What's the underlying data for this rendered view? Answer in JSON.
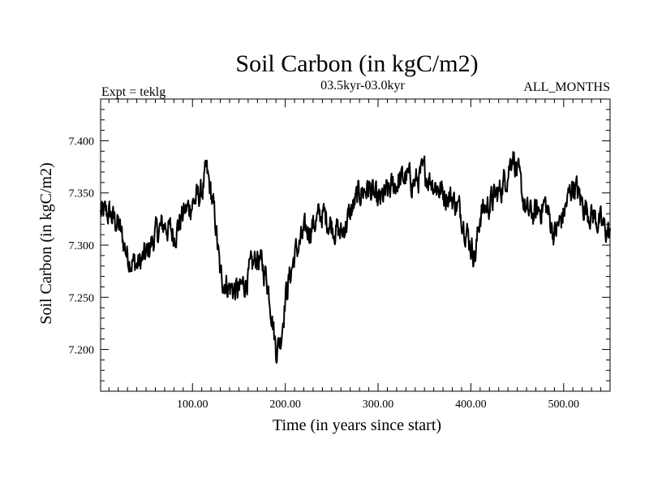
{
  "chart_data": {
    "type": "line",
    "title": "Soil Carbon (in kgC/m2)",
    "subtitle_left": "Expt = teklg",
    "subtitle_center": "03.5kyr-03.0kyr",
    "subtitle_right": "ALL_MONTHS",
    "xlabel": "Time (in years since start)",
    "ylabel": "Soil Carbon (in kgC/m2)",
    "xlim": [
      1,
      550
    ],
    "ylim": [
      7.16,
      7.44
    ],
    "x_ticks": [
      100,
      200,
      300,
      400,
      500
    ],
    "x_tick_labels": [
      "100.00",
      "200.00",
      "300.00",
      "400.00",
      "500.00"
    ],
    "y_ticks": [
      7.2,
      7.25,
      7.3,
      7.35,
      7.4
    ],
    "y_tick_labels": [
      "7.200",
      "7.250",
      "7.300",
      "7.350",
      "7.400"
    ],
    "series": [
      {
        "name": "Soil Carbon",
        "color": "#000000",
        "anchor_x": [
          1,
          10,
          20,
          30,
          40,
          50,
          60,
          70,
          80,
          90,
          100,
          110,
          115,
          120,
          125,
          130,
          140,
          150,
          160,
          170,
          180,
          185,
          190,
          195,
          200,
          210,
          220,
          230,
          240,
          250,
          260,
          270,
          280,
          290,
          300,
          310,
          320,
          330,
          340,
          350,
          360,
          370,
          380,
          390,
          400,
          405,
          410,
          420,
          430,
          440,
          445,
          450,
          460,
          470,
          480,
          490,
          500,
          510,
          520,
          530,
          540,
          550
        ],
        "anchor_y": [
          7.33,
          7.33,
          7.32,
          7.29,
          7.28,
          7.29,
          7.31,
          7.32,
          7.31,
          7.33,
          7.34,
          7.35,
          7.37,
          7.35,
          7.32,
          7.27,
          7.26,
          7.255,
          7.27,
          7.29,
          7.27,
          7.24,
          7.2,
          7.21,
          7.25,
          7.29,
          7.31,
          7.32,
          7.33,
          7.32,
          7.31,
          7.33,
          7.35,
          7.355,
          7.34,
          7.35,
          7.36,
          7.365,
          7.36,
          7.37,
          7.36,
          7.35,
          7.345,
          7.33,
          7.3,
          7.29,
          7.33,
          7.34,
          7.35,
          7.37,
          7.39,
          7.37,
          7.33,
          7.33,
          7.34,
          7.31,
          7.33,
          7.36,
          7.34,
          7.33,
          7.32,
          7.31
        ],
        "noise_amplitude": 0.011
      }
    ]
  }
}
